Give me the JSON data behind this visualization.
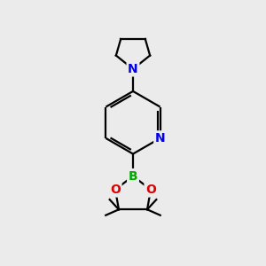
{
  "background_color": "#ebebeb",
  "bond_color": "#000000",
  "N_color": "#0000ee",
  "O_color": "#dd0000",
  "B_color": "#00aa00",
  "line_width": 1.6,
  "font_size_atoms": 10,
  "fig_width": 3.0,
  "fig_height": 3.0,
  "dpi": 100,
  "xlim": [
    0,
    10
  ],
  "ylim": [
    0,
    10
  ]
}
